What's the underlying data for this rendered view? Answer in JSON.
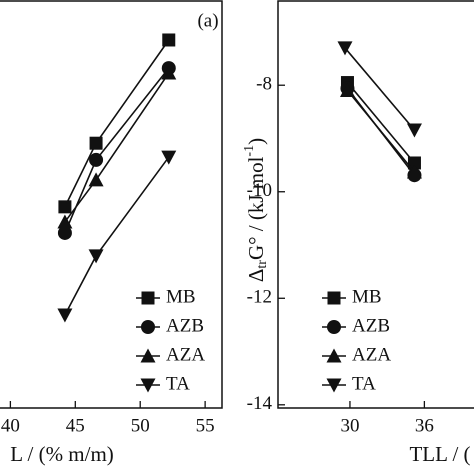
{
  "chart_data": [
    {
      "type": "line",
      "annotation": "(a)",
      "x_label": "L / (% m/m)",
      "xlim": [
        39.2,
        56.3
      ],
      "xticks": [
        40,
        45,
        50,
        55
      ],
      "ylim": [
        0,
        100
      ],
      "legend": "lower right",
      "series": [
        {
          "name": "MB",
          "marker": "square",
          "color": "#111111",
          "x": [
            44.2,
            46.6,
            52.2
          ],
          "values": [
            49.3,
            64.9,
            90.2
          ]
        },
        {
          "name": "AZB",
          "marker": "circle",
          "color": "#111111",
          "x": [
            44.2,
            46.6,
            52.2
          ],
          "values": [
            42.9,
            60.8,
            83.3
          ]
        },
        {
          "name": "AZA",
          "marker": "triangle-up",
          "color": "#111111",
          "x": [
            44.2,
            46.6,
            52.2
          ],
          "values": [
            45.6,
            55.9,
            82.1
          ]
        },
        {
          "name": "TA",
          "marker": "triangle-down",
          "color": "#111111",
          "x": [
            44.2,
            46.6,
            52.2
          ],
          "values": [
            22.8,
            37.3,
            61.5
          ]
        }
      ]
    },
    {
      "type": "line",
      "x_label": "TLL / (",
      "y_label": [
        "Δ",
        "tr",
        "G° / (kJ mol",
        "-1",
        ")"
      ],
      "xlim": [
        24.2,
        40
      ],
      "xticks": [
        30,
        36
      ],
      "ylim": [
        -14.06,
        -6.4
      ],
      "yticks": [
        -8,
        -10,
        -12,
        -14
      ],
      "legend": "lower left",
      "series": [
        {
          "name": "MB",
          "marker": "square",
          "color": "#111111",
          "x": [
            29.8,
            35.2
          ],
          "values": [
            -7.95,
            -9.46
          ]
        },
        {
          "name": "AZB",
          "marker": "circle",
          "color": "#111111",
          "x": [
            29.8,
            35.2
          ],
          "values": [
            -8.06,
            -9.69
          ]
        },
        {
          "name": "AZA",
          "marker": "triangle-up",
          "color": "#111111",
          "x": [
            29.8,
            35.2
          ],
          "values": [
            -8.1,
            -9.63
          ]
        },
        {
          "name": "TA",
          "marker": "triangle-down",
          "color": "#111111",
          "x": [
            29.6,
            35.2
          ],
          "values": [
            -7.3,
            -8.84
          ]
        }
      ]
    }
  ]
}
